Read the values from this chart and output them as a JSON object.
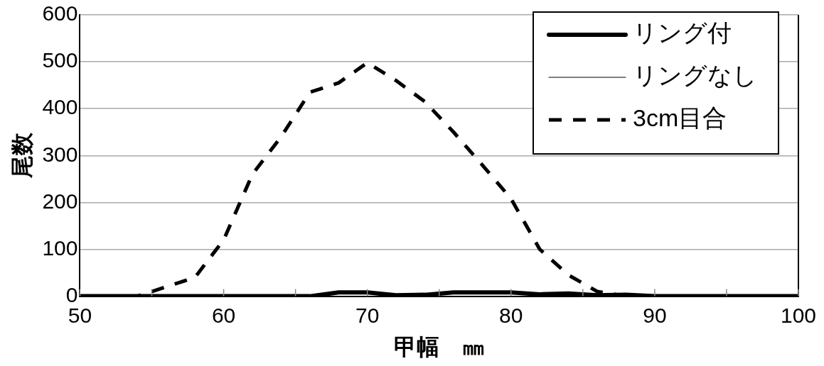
{
  "chart_data": {
    "type": "line",
    "xlabel": "甲幅　㎜",
    "ylabel": "尾数",
    "x": [
      50,
      52,
      54,
      56,
      58,
      60,
      62,
      64,
      66,
      68,
      70,
      72,
      74,
      76,
      78,
      80,
      82,
      84,
      86,
      88,
      90,
      92,
      94,
      96,
      98,
      100
    ],
    "series": [
      {
        "name": "リング付",
        "color": "#000000",
        "line_style": "solid",
        "values": [
          0,
          0,
          0,
          0,
          0,
          0,
          0,
          0,
          0,
          8,
          8,
          2,
          3,
          8,
          8,
          8,
          4,
          6,
          2,
          3,
          0,
          0,
          0,
          0,
          0,
          0
        ]
      },
      {
        "name": "リングなし",
        "color": "#000000",
        "line_style": "solid",
        "values": [
          0,
          0,
          0,
          0,
          0,
          0,
          0,
          0,
          0,
          0,
          0,
          0,
          0,
          0,
          0,
          0,
          0,
          0,
          0,
          0,
          0,
          0,
          0,
          0,
          0,
          0
        ]
      },
      {
        "name": "3cm目合",
        "color": "#000000",
        "line_style": "dashed",
        "values": [
          0,
          0,
          0,
          20,
          40,
          120,
          260,
          340,
          435,
          455,
          498,
          460,
          415,
          350,
          280,
          208,
          100,
          45,
          10,
          0,
          0,
          0,
          0,
          0,
          0,
          0
        ]
      }
    ],
    "xlim": [
      50,
      100
    ],
    "xticks": [
      50,
      {
        "value": 55,
        "label": null
      },
      60,
      {
        "value": 65,
        "label": null
      },
      70,
      {
        "value": 75,
        "label": null
      },
      80,
      {
        "value": 85,
        "label": null
      },
      90,
      {
        "value": 95,
        "label": null
      },
      100
    ],
    "ylim": [
      0,
      600
    ],
    "yticks": [
      0,
      100,
      200,
      300,
      400,
      500,
      600
    ],
    "grid": "y",
    "legend": "top right",
    "marker": "none"
  }
}
